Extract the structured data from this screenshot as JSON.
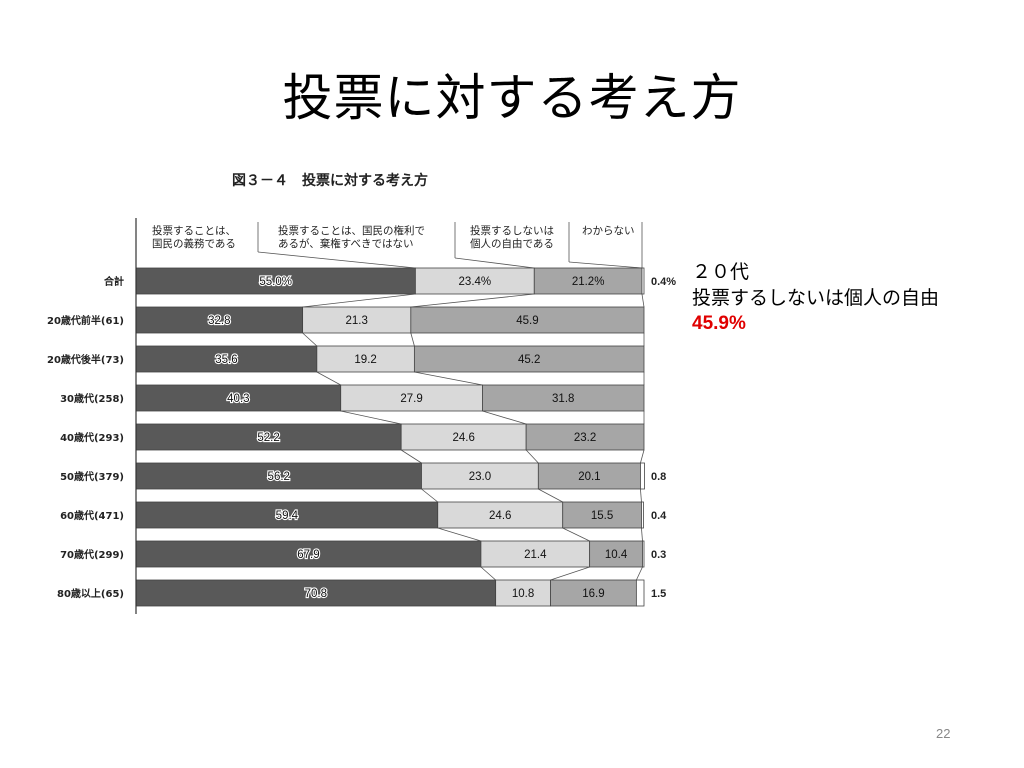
{
  "slide": {
    "title": "投票に対する考え方",
    "page_number": "22"
  },
  "note": {
    "line1": "２０代",
    "line2": "投票するしないは個人の自由",
    "line3": "45.9%"
  },
  "chart_data": {
    "type": "bar",
    "stacked": "horizontal-100%",
    "title": "図３－４　投票に対する考え方",
    "categories": [
      "合計",
      "20歳代前半(61)",
      "20歳代後半(73)",
      "30歳代(258)",
      "40歳代(293)",
      "50歳代(379)",
      "60歳代(471)",
      "70歳代(299)",
      "80歳以上(65)"
    ],
    "series": [
      {
        "name": "投票することは、国民の義務である",
        "color": "#595959",
        "values": [
          55.0,
          32.8,
          35.6,
          40.3,
          52.2,
          56.2,
          59.4,
          67.9,
          70.8
        ],
        "labels": [
          "55.0%",
          "32.8",
          "35.6",
          "40.3",
          "52.2",
          "56.2",
          "59.4",
          "67.9",
          "70.8"
        ]
      },
      {
        "name": "投票することは、国民の権利であるが、棄権すべきではない",
        "color": "#d9d9d9",
        "values": [
          23.4,
          21.3,
          19.2,
          27.9,
          24.6,
          23.0,
          24.6,
          21.4,
          10.8
        ],
        "labels": [
          "23.4%",
          "21.3",
          "19.2",
          "27.9",
          "24.6",
          "23.0",
          "24.6",
          "21.4",
          "10.8"
        ]
      },
      {
        "name": "投票するしないは個人の自由である",
        "color": "#a6a6a6",
        "values": [
          21.2,
          45.9,
          45.2,
          31.8,
          23.2,
          20.1,
          15.5,
          10.4,
          16.9
        ],
        "labels": [
          "21.2%",
          "45.9",
          "45.2",
          "31.8",
          "23.2",
          "20.1",
          "15.5",
          "10.4",
          "16.9"
        ]
      },
      {
        "name": "わからない",
        "color": "#ffffff",
        "values": [
          0.4,
          0.0,
          0.0,
          0.0,
          0.0,
          0.8,
          0.4,
          0.3,
          1.5
        ],
        "labels": [
          "0.4%",
          "",
          "",
          "",
          "",
          "0.8",
          "0.4",
          "0.3",
          "1.5"
        ]
      }
    ],
    "xlim": [
      0,
      100
    ],
    "legend_position": "top"
  }
}
